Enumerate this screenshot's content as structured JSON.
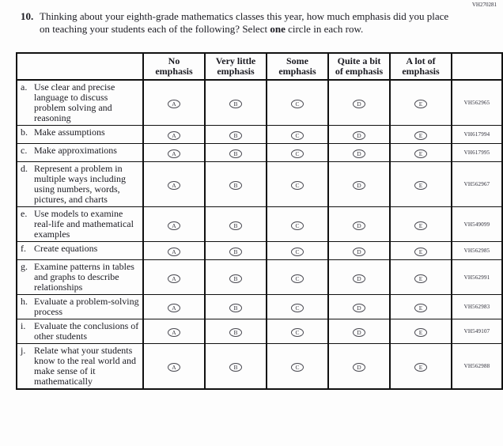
{
  "page": {
    "top_code": "VH270281"
  },
  "question": {
    "number": "10.",
    "text_before_bold": "Thinking about your eighth-grade mathematics classes this year, how much emphasis did you place on teaching your students each of the following? Select ",
    "bold_word": "one",
    "text_after_bold": " circle in each row."
  },
  "table": {
    "columns": [
      "No\nemphasis",
      "Very little\nemphasis",
      "Some\nemphasis",
      "Quite a bit\nof emphasis",
      "A lot of\nemphasis"
    ],
    "option_letters": [
      "A",
      "B",
      "C",
      "D",
      "E"
    ],
    "rows": [
      {
        "letter": "a.",
        "text": "Use clear and precise language to discuss problem solving and reasoning",
        "code": "VH562965"
      },
      {
        "letter": "b.",
        "text": "Make assumptions",
        "code": "VH617994"
      },
      {
        "letter": "c.",
        "text": "Make approximations",
        "code": "VH617995"
      },
      {
        "letter": "d.",
        "text": "Represent a problem in multiple ways including using numbers, words, pictures, and charts",
        "code": "VH562967"
      },
      {
        "letter": "e.",
        "text": "Use models to examine real-life and mathematical examples",
        "code": "VH549099"
      },
      {
        "letter": "f.",
        "text": "Create equations",
        "code": "VH562985"
      },
      {
        "letter": "g.",
        "text": "Examine patterns in tables and graphs to describe relationships",
        "code": "VH562991"
      },
      {
        "letter": "h.",
        "text": "Evaluate a problem-solving process",
        "code": "VH562983"
      },
      {
        "letter": "i.",
        "text": "Evaluate the conclusions of other students",
        "code": "VH549107"
      },
      {
        "letter": "j.",
        "text": "Relate what your students know to the real world and make sense of it mathematically",
        "code": "VH562988"
      }
    ]
  },
  "colors": {
    "text": "#1b1b22",
    "border": "#111111",
    "background": "#fdfdfd"
  }
}
